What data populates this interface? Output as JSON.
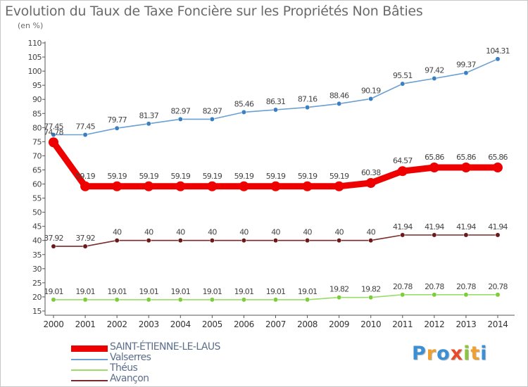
{
  "title": "Evolution du Taux de Taxe Foncière sur les Propriétés Non Bâties",
  "subtitle": "(en %)",
  "logo": {
    "text": "Proxiti",
    "letters": [
      {
        "ch": "P",
        "color": "#3b8fd4"
      },
      {
        "ch": "r",
        "color": "#f0a030"
      },
      {
        "ch": "o",
        "color": "#3b8fd4"
      },
      {
        "ch": "x",
        "color": "#e84a2a"
      },
      {
        "ch": "i",
        "color": "#8cc43c"
      },
      {
        "ch": "t",
        "color": "#f0a030"
      },
      {
        "ch": "i",
        "color": "#3b8fd4"
      }
    ]
  },
  "chart_data": {
    "type": "line",
    "title": "Evolution du Taux de Taxe Foncière sur les Propriétés Non Bâties",
    "ylabel": "(en %)",
    "xlabel": "",
    "categories": [
      "2000",
      "2001",
      "2002",
      "2003",
      "2004",
      "2005",
      "2006",
      "2007",
      "2008",
      "2009",
      "2010",
      "2011",
      "2012",
      "2013",
      "2014"
    ],
    "ylim": [
      15,
      110
    ],
    "yticks": [
      15,
      20,
      25,
      30,
      35,
      40,
      45,
      50,
      55,
      60,
      65,
      70,
      75,
      80,
      85,
      90,
      95,
      100,
      105,
      110
    ],
    "grid": false,
    "legend_position": "bottom-left",
    "series": [
      {
        "name": "SAINT-ÉTIENNE-LE-LAUS",
        "color": "#ee0000",
        "bold": true,
        "values": [
          74.78,
          59.19,
          59.19,
          59.19,
          59.19,
          59.19,
          59.19,
          59.19,
          59.19,
          59.19,
          60.38,
          64.57,
          65.86,
          65.86,
          65.86
        ],
        "labels": [
          "74.78",
          "59.19",
          "59.19",
          "59.19",
          "59.19",
          "59.19",
          "59.19",
          "59.19",
          "59.19",
          "59.19",
          "60.38",
          "64.57",
          "65.86",
          "65.86",
          "65.86"
        ]
      },
      {
        "name": "Valserres",
        "color": "#6aa0d2",
        "marker": "#3a7fc0",
        "values": [
          77.45,
          77.45,
          79.77,
          81.37,
          82.97,
          82.97,
          85.46,
          86.31,
          87.16,
          88.46,
          90.19,
          95.51,
          97.42,
          99.37,
          104.31
        ],
        "labels": [
          "77.45",
          "77.45",
          "79.77",
          "81.37",
          "82.97",
          "82.97",
          "85.46",
          "86.31",
          "87.16",
          "88.46",
          "90.19",
          "95.51",
          "97.42",
          "99.37",
          "104.31"
        ]
      },
      {
        "name": "Théus",
        "color": "#99dd66",
        "marker": "#7ccc3c",
        "values": [
          19.01,
          19.01,
          19.01,
          19.01,
          19.01,
          19.01,
          19.01,
          19.01,
          19.01,
          19.82,
          19.82,
          20.78,
          20.78,
          20.78,
          20.78
        ],
        "labels": [
          "19.01",
          "19.01",
          "19.01",
          "19.01",
          "19.01",
          "19.01",
          "19.01",
          "19.01",
          "19.01",
          "19.82",
          "19.82",
          "20.78",
          "20.78",
          "20.78",
          "20.78"
        ]
      },
      {
        "name": "Avançon",
        "color": "#7a2a2a",
        "marker": "#6a1818",
        "values": [
          37.92,
          37.92,
          40,
          40,
          40,
          40,
          40,
          40,
          40,
          40,
          40,
          41.94,
          41.94,
          41.94,
          41.94
        ],
        "labels": [
          "37.92",
          "37.92",
          "40",
          "40",
          "40",
          "40",
          "40",
          "40",
          "40",
          "40",
          "40",
          "41.94",
          "41.94",
          "41.94",
          "41.94"
        ]
      }
    ]
  }
}
